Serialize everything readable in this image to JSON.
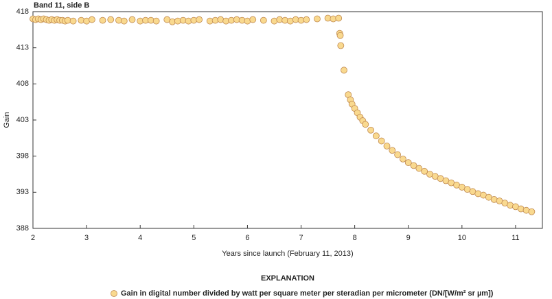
{
  "chart_data": {
    "type": "scatter",
    "title": "Band 11, side B",
    "xlabel": "Years since launch (February 11, 2013)",
    "ylabel": "Gain",
    "legend_title": "EXPLANATION",
    "xlim": [
      2,
      11.5
    ],
    "ylim": [
      388,
      418
    ],
    "xticks": [
      2,
      3,
      4,
      5,
      6,
      7,
      8,
      9,
      10,
      11
    ],
    "yticks": [
      388,
      393,
      398,
      403,
      408,
      413,
      418
    ],
    "series": [
      {
        "name": "Gain in digital number divided by watt per square meter per steradian per micrometer (DN/[W/m² sr µm])",
        "color": "#f9d98f",
        "x": [
          2.0,
          2.05,
          2.1,
          2.15,
          2.2,
          2.25,
          2.3,
          2.35,
          2.4,
          2.45,
          2.5,
          2.55,
          2.6,
          2.65,
          2.75,
          2.9,
          3.0,
          3.1,
          3.3,
          3.45,
          3.6,
          3.7,
          3.85,
          4.0,
          4.1,
          4.2,
          4.3,
          4.5,
          4.6,
          4.7,
          4.8,
          4.9,
          5.0,
          5.1,
          5.3,
          5.4,
          5.5,
          5.6,
          5.7,
          5.8,
          5.9,
          6.0,
          6.1,
          6.3,
          6.5,
          6.6,
          6.7,
          6.8,
          6.9,
          7.0,
          7.1,
          7.3,
          7.5,
          7.6,
          7.7,
          7.72,
          7.73,
          7.74,
          7.8,
          7.88,
          7.92,
          7.95,
          8.0,
          8.05,
          8.1,
          8.15,
          8.2,
          8.3,
          8.4,
          8.5,
          8.6,
          8.7,
          8.8,
          8.9,
          9.0,
          9.1,
          9.2,
          9.3,
          9.4,
          9.5,
          9.6,
          9.7,
          9.8,
          9.9,
          10.0,
          10.1,
          10.2,
          10.3,
          10.4,
          10.5,
          10.6,
          10.7,
          10.8,
          10.9,
          11.0,
          11.1,
          11.2,
          11.3
        ],
        "values": [
          417.0,
          416.9,
          417.0,
          416.9,
          417.0,
          416.9,
          416.8,
          416.9,
          416.8,
          416.9,
          416.8,
          416.8,
          416.7,
          416.8,
          416.7,
          416.8,
          416.7,
          416.9,
          416.8,
          416.9,
          416.8,
          416.7,
          416.9,
          416.7,
          416.8,
          416.8,
          416.7,
          416.9,
          416.6,
          416.7,
          416.8,
          416.7,
          416.8,
          416.9,
          416.7,
          416.8,
          416.9,
          416.7,
          416.8,
          416.9,
          416.8,
          416.7,
          416.9,
          416.8,
          416.7,
          416.9,
          416.8,
          416.7,
          416.9,
          416.8,
          416.9,
          417.0,
          417.1,
          417.0,
          417.1,
          415.0,
          414.7,
          413.3,
          409.9,
          406.5,
          405.8,
          405.2,
          404.6,
          404.0,
          403.4,
          402.9,
          402.4,
          401.6,
          400.8,
          400.1,
          399.4,
          398.8,
          398.2,
          397.6,
          397.1,
          396.7,
          396.3,
          395.9,
          395.5,
          395.2,
          394.9,
          394.6,
          394.3,
          394.0,
          393.7,
          393.4,
          393.1,
          392.8,
          392.6,
          392.3,
          392.0,
          391.8,
          391.5,
          391.2,
          391.0,
          390.7,
          390.5,
          390.3
        ]
      }
    ]
  }
}
